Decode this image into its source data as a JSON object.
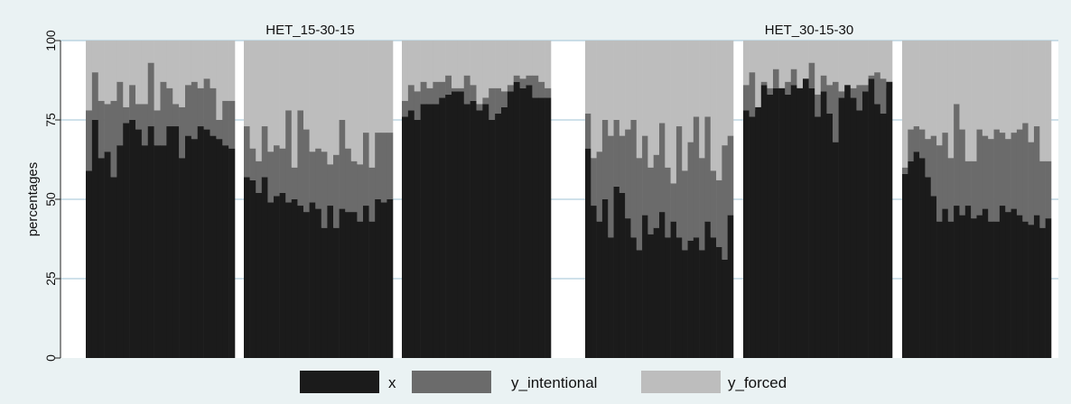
{
  "chart_data": {
    "type": "bar",
    "stacked": true,
    "ylabel": "percentages",
    "ylim": [
      0,
      100
    ],
    "yticks": [
      0,
      25,
      50,
      75,
      100
    ],
    "grid": true,
    "legend_position": "bottom",
    "colors": {
      "x": "#1b1b1b",
      "y_intentional": "#6b6b6b",
      "y_forced": "#bdbdbd",
      "gridline": "#9fc3d6",
      "background": "#eaf2f3",
      "plot_background": "#ffffff"
    },
    "series_names": [
      "x",
      "y_intentional",
      "y_forced"
    ],
    "panels": [
      {
        "title": "HET_15-30-15",
        "groups": [
          {
            "x": [
              59,
              75,
              63,
              65,
              57,
              67,
              74,
              75,
              72,
              67,
              73,
              67,
              67,
              73,
              73,
              63,
              70,
              69,
              73,
              72,
              70,
              69,
              67,
              66
            ],
            "x_plus_y_intentional": [
              78,
              90,
              81,
              80,
              81,
              87,
              79,
              86,
              80,
              80,
              93,
              78,
              87,
              85,
              80,
              79,
              86,
              87,
              85,
              88,
              85,
              75,
              81,
              81
            ]
          },
          {
            "x": [
              57,
              56,
              52,
              57,
              49,
              51,
              52,
              49,
              50,
              48,
              46,
              49,
              47,
              41,
              48,
              41,
              47,
              46,
              46,
              43,
              48,
              43,
              50,
              49,
              50
            ],
            "x_plus_y_intentional": [
              73,
              66,
              62,
              73,
              65,
              67,
              66,
              78,
              60,
              78,
              72,
              65,
              66,
              65,
              61,
              64,
              75,
              66,
              62,
              61,
              71,
              60,
              71,
              71,
              71
            ]
          },
          {
            "x": [
              76,
              78,
              75,
              80,
              80,
              80,
              82,
              83,
              84,
              84,
              80,
              81,
              78,
              80,
              75,
              77,
              79,
              84,
              87,
              85,
              86,
              82,
              82,
              82
            ],
            "x_plus_y_intentional": [
              81,
              86,
              84,
              87,
              85,
              87,
              87,
              89,
              85,
              85,
              89,
              86,
              80,
              82,
              85,
              85,
              84,
              86,
              89,
              88,
              89,
              89,
              87,
              85
            ]
          }
        ]
      },
      {
        "title": "HET_30-15-30",
        "groups": [
          {
            "x": [
              66,
              48,
              43,
              50,
              38,
              54,
              52,
              44,
              38,
              34,
              45,
              39,
              41,
              46,
              38,
              43,
              38,
              34,
              37,
              38,
              34,
              43,
              38,
              35,
              31,
              45
            ],
            "x_plus_y_intentional": [
              77,
              63,
              65,
              75,
              70,
              75,
              70,
              72,
              75,
              63,
              70,
              60,
              64,
              74,
              60,
              55,
              73,
              59,
              68,
              76,
              63,
              76,
              59,
              56,
              67,
              70
            ]
          },
          {
            "x": [
              78,
              76,
              79,
              86,
              83,
              85,
              85,
              83,
              86,
              85,
              88,
              85,
              76,
              84,
              77,
              68,
              82,
              86,
              82,
              78,
              84,
              88,
              80,
              77,
              87
            ],
            "x_plus_y_intentional": [
              86,
              90,
              78,
              87,
              85,
              91,
              85,
              87,
              91,
              85,
              88,
              93,
              83,
              89,
              86,
              87,
              84,
              86,
              85,
              86,
              86,
              89,
              90,
              88,
              85
            ]
          },
          {
            "x": [
              58,
              62,
              65,
              63,
              57,
              51,
              43,
              47,
              43,
              48,
              45,
              48,
              44,
              45,
              47,
              43,
              43,
              48,
              46,
              47,
              45,
              43,
              42,
              45,
              41,
              44
            ],
            "x_plus_y_intentional": [
              60,
              72,
              73,
              72,
              69,
              70,
              67,
              71,
              63,
              80,
              72,
              62,
              62,
              72,
              70,
              69,
              72,
              71,
              69,
              71,
              72,
              74,
              68,
              73,
              62,
              62
            ]
          }
        ]
      }
    ]
  },
  "legend": [
    {
      "key": "x",
      "label": "x",
      "color": "#1b1b1b"
    },
    {
      "key": "y_intentional",
      "label": "y_intentional",
      "color": "#6b6b6b"
    },
    {
      "key": "y_forced",
      "label": "y_forced",
      "color": "#bdbdbd"
    }
  ]
}
